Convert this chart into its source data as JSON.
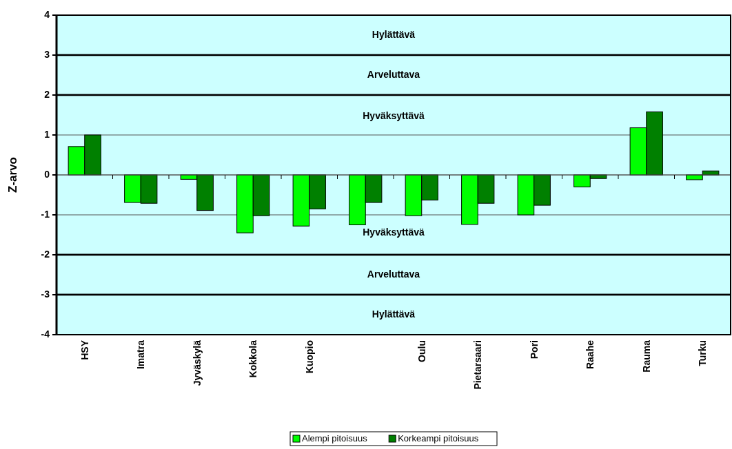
{
  "chart_data": {
    "type": "bar",
    "ylabel": "Z-arvo",
    "categories": [
      "HSY",
      "Imatra",
      "Jyväskylä",
      "Kokkola",
      "Kuopio",
      null,
      "Oulu",
      "Pietarsaari",
      "Pori",
      "Raahe",
      "Rauma",
      "Turku"
    ],
    "series": [
      {
        "name": "Alempi pitoisuus",
        "color": "#00ff00",
        "values": [
          0.71,
          -0.69,
          -0.11,
          -1.45,
          -1.28,
          -1.25,
          -1.02,
          -1.24,
          -1.0,
          -0.3,
          1.18,
          -0.12
        ]
      },
      {
        "name": "Korkeampi pitoisuus",
        "color": "#008000",
        "values": [
          1.0,
          -0.71,
          -0.89,
          -1.02,
          -0.85,
          -0.69,
          -0.63,
          -0.71,
          -0.76,
          -0.09,
          1.58,
          0.1
        ]
      }
    ],
    "ylim": [
      -4,
      4
    ],
    "yticks": [
      -4,
      -3,
      -2,
      -1,
      0,
      1,
      2,
      3,
      4
    ],
    "grid": "y",
    "legend": "bottom",
    "bands": [
      {
        "axis": "y",
        "from": 3,
        "to": 4,
        "label": "Hylättävä",
        "color": "#ccffff"
      },
      {
        "axis": "y",
        "from": 2,
        "to": 3,
        "label": "Arveluttava",
        "color": "#ccffff"
      },
      {
        "axis": "y",
        "from": 0,
        "to": 2,
        "label": "Hyväksyttävä",
        "color": "#ccffff"
      },
      {
        "axis": "y",
        "from": -2,
        "to": 0,
        "label": "Hyväksyttävä",
        "color": "#ccffff"
      },
      {
        "axis": "y",
        "from": -3,
        "to": -2,
        "label": "Arveluttava",
        "color": "#ccffff"
      },
      {
        "axis": "y",
        "from": -4,
        "to": -3,
        "label": "Hylättävä",
        "color": "#ccffff"
      }
    ]
  }
}
